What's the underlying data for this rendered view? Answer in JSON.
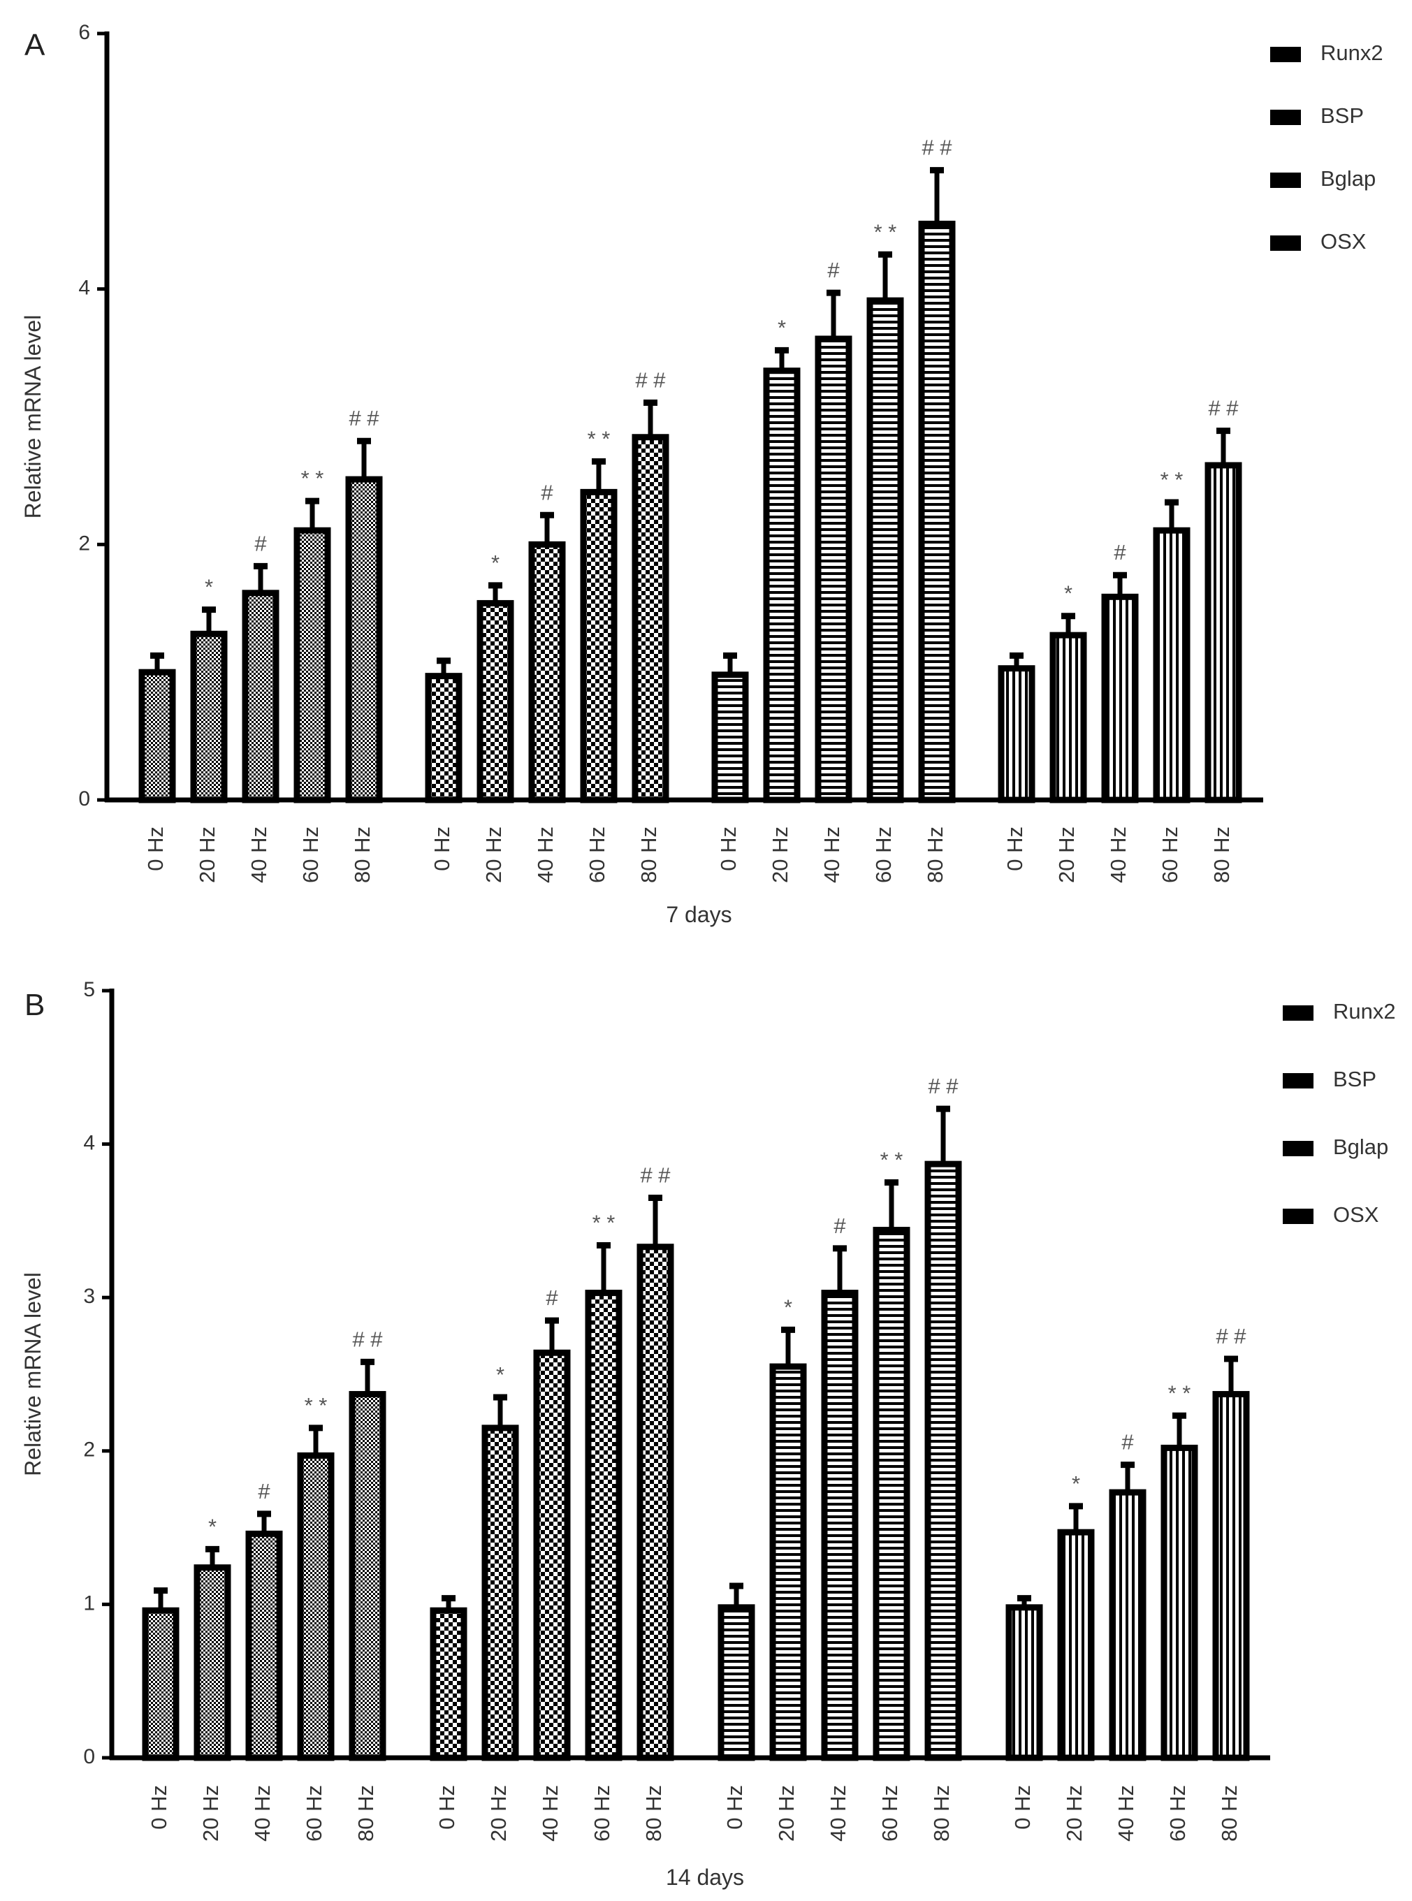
{
  "colors": {
    "ink": "#000000",
    "text": "#333333",
    "significance": "#555555",
    "background": "#ffffff"
  },
  "chart_data": [
    {
      "type": "bar",
      "panel": "A",
      "xlabel": "7 days",
      "ylabel": "Relative mRNA level",
      "ylim": [
        0,
        6
      ],
      "yticks": [
        "0",
        "2",
        "4",
        "6"
      ],
      "grid": false,
      "legend_position": "top-right",
      "categories": [
        "0 Hz",
        "20 Hz",
        "40 Hz",
        "60 Hz",
        "80 Hz"
      ],
      "series": [
        {
          "name": "Runx2",
          "pattern": "fine-check",
          "values": [
            1.0,
            1.3,
            1.62,
            2.11,
            2.51
          ],
          "errors": [
            0.13,
            0.19,
            0.21,
            0.23,
            0.3
          ],
          "significance": [
            "",
            "*",
            "#",
            "**",
            "##"
          ]
        },
        {
          "name": "BSP",
          "pattern": "checker",
          "values": [
            0.97,
            1.54,
            2.0,
            2.41,
            2.84
          ],
          "errors": [
            0.12,
            0.14,
            0.23,
            0.24,
            0.27
          ],
          "significance": [
            "",
            "*",
            "#",
            "**",
            "##"
          ]
        },
        {
          "name": "Bglap",
          "pattern": "horizontal-lines",
          "values": [
            0.98,
            3.36,
            3.61,
            3.91,
            4.51
          ],
          "errors": [
            0.15,
            0.16,
            0.36,
            0.36,
            0.42
          ],
          "significance": [
            "",
            "*",
            "#",
            "**",
            "##"
          ]
        },
        {
          "name": "OSX",
          "pattern": "vertical-lines",
          "values": [
            1.03,
            1.29,
            1.59,
            2.11,
            2.62
          ],
          "errors": [
            0.1,
            0.15,
            0.17,
            0.22,
            0.27
          ],
          "significance": [
            "",
            "*",
            "#",
            "**",
            "##"
          ]
        }
      ]
    },
    {
      "type": "bar",
      "panel": "B",
      "xlabel": "14 days",
      "ylabel": "Relative mRNA level",
      "ylim": [
        0,
        5
      ],
      "yticks": [
        "0",
        "1",
        "2",
        "3",
        "4",
        "5"
      ],
      "grid": false,
      "legend_position": "top-right",
      "categories": [
        "0 Hz",
        "20 Hz",
        "40 Hz",
        "60 Hz",
        "80 Hz"
      ],
      "series": [
        {
          "name": "Runx2",
          "pattern": "fine-check",
          "values": [
            0.96,
            1.24,
            1.46,
            1.97,
            2.37
          ],
          "errors": [
            0.13,
            0.12,
            0.13,
            0.18,
            0.21
          ],
          "significance": [
            "",
            "*",
            "#",
            "**",
            "##"
          ]
        },
        {
          "name": "BSP",
          "pattern": "checker",
          "values": [
            0.96,
            2.15,
            2.64,
            3.03,
            3.33
          ],
          "errors": [
            0.08,
            0.2,
            0.21,
            0.31,
            0.32
          ],
          "significance": [
            "",
            "*",
            "#",
            "**",
            "##"
          ]
        },
        {
          "name": "Bglap",
          "pattern": "horizontal-lines",
          "values": [
            0.98,
            2.55,
            3.03,
            3.44,
            3.87
          ],
          "errors": [
            0.14,
            0.24,
            0.29,
            0.31,
            0.36
          ],
          "significance": [
            "",
            "*",
            "#",
            "**",
            "##"
          ]
        },
        {
          "name": "OSX",
          "pattern": "vertical-lines",
          "values": [
            0.98,
            1.47,
            1.73,
            2.02,
            2.37
          ],
          "errors": [
            0.06,
            0.17,
            0.18,
            0.21,
            0.23
          ],
          "significance": [
            "",
            "*",
            "#",
            "**",
            "##"
          ]
        }
      ]
    }
  ]
}
